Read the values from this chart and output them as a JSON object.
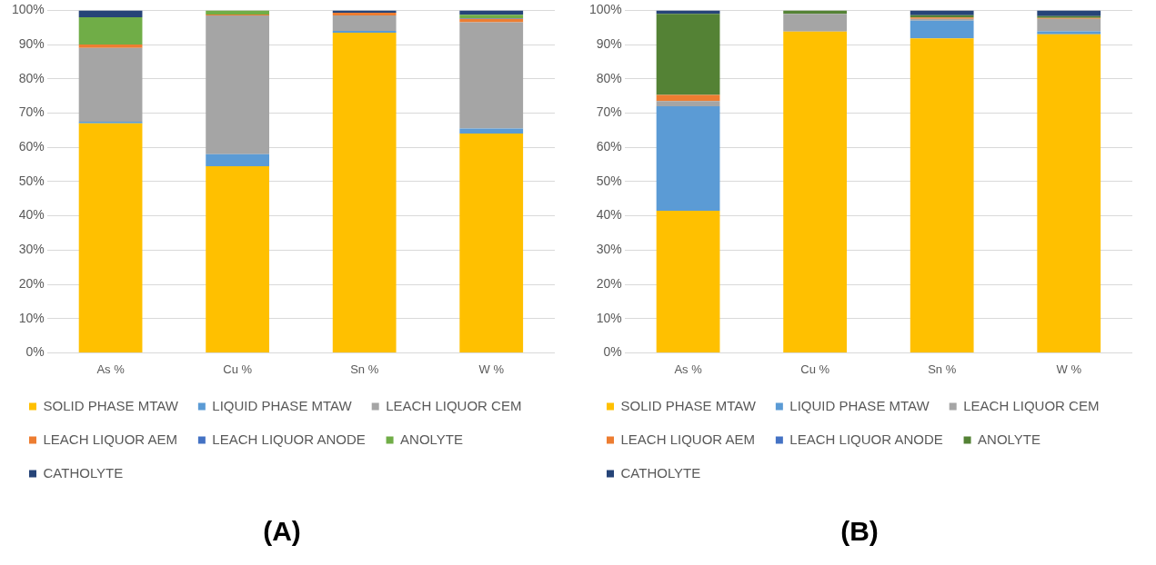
{
  "chart_data": [
    {
      "type": "bar",
      "title": "(A)",
      "stacked": true,
      "categories": [
        "As %",
        "Cu %",
        "Sn %",
        "W %"
      ],
      "ylim": [
        0,
        100
      ],
      "yticks": [
        {
          "value": 0,
          "label": "0%"
        },
        {
          "value": 10,
          "label": "10%"
        },
        {
          "value": 20,
          "label": "20%"
        },
        {
          "value": 30,
          "label": "30%"
        },
        {
          "value": 40,
          "label": "40%"
        },
        {
          "value": 50,
          "label": "50%"
        },
        {
          "value": 60,
          "label": "60%"
        },
        {
          "value": 70,
          "label": "70%"
        },
        {
          "value": 80,
          "label": "80%"
        },
        {
          "value": 90,
          "label": "90%"
        },
        {
          "value": 100,
          "label": "100%"
        }
      ],
      "grid": "y",
      "legend": "bottom",
      "series": [
        {
          "name": "SOLID PHASE MTAW",
          "color": "#ffc000",
          "values": [
            67,
            54.5,
            93.5,
            64
          ]
        },
        {
          "name": "LIQUID PHASE MTAW",
          "color": "#5b9bd5",
          "values": [
            0.5,
            3.5,
            0.5,
            1.5
          ]
        },
        {
          "name": "LEACH LIQUOR CEM",
          "color": "#a5a5a5",
          "values": [
            21.5,
            40.5,
            4.5,
            31
          ]
        },
        {
          "name": "LEACH LIQUOR AEM",
          "color": "#ed7d31",
          "values": [
            1,
            0.3,
            0.8,
            1
          ]
        },
        {
          "name": "LEACH LIQUOR ANODE",
          "color": "#4472c4",
          "values": [
            0,
            0,
            0,
            0.2
          ]
        },
        {
          "name": "ANOLYTE",
          "color": "#70ad47",
          "values": [
            8,
            1.2,
            0,
            1
          ]
        },
        {
          "name": "CATHOLYTE",
          "color": "#264478",
          "values": [
            2,
            0,
            0.7,
            1.3
          ]
        }
      ]
    },
    {
      "type": "bar",
      "title": "(B)",
      "stacked": true,
      "categories": [
        "As %",
        "Cu %",
        "Sn %",
        "W %"
      ],
      "ylim": [
        0,
        100
      ],
      "yticks": [
        {
          "value": 0,
          "label": "0%"
        },
        {
          "value": 10,
          "label": "10%"
        },
        {
          "value": 20,
          "label": "20%"
        },
        {
          "value": 30,
          "label": "30%"
        },
        {
          "value": 40,
          "label": "40%"
        },
        {
          "value": 50,
          "label": "50%"
        },
        {
          "value": 60,
          "label": "60%"
        },
        {
          "value": 70,
          "label": "70%"
        },
        {
          "value": 80,
          "label": "80%"
        },
        {
          "value": 90,
          "label": "90%"
        },
        {
          "value": 100,
          "label": "100%"
        }
      ],
      "grid": "y",
      "legend": "bottom",
      "series": [
        {
          "name": "SOLID PHASE MTAW",
          "color": "#ffc000",
          "values": [
            41.5,
            93.8,
            91.8,
            93
          ]
        },
        {
          "name": "LIQUID PHASE MTAW",
          "color": "#5b9bd5",
          "values": [
            30.5,
            0,
            5.2,
            0.9
          ]
        },
        {
          "name": "LEACH LIQUOR CEM",
          "color": "#a5a5a5",
          "values": [
            1.5,
            5.2,
            0.5,
            3.6
          ]
        },
        {
          "name": "LEACH LIQUOR AEM",
          "color": "#ed7d31",
          "values": [
            1.8,
            0,
            0.4,
            0.3
          ]
        },
        {
          "name": "LEACH LIQUOR ANODE",
          "color": "#4472c4",
          "values": [
            0,
            0,
            0,
            0
          ]
        },
        {
          "name": "ANOLYTE",
          "color": "#548235",
          "values": [
            23.7,
            1,
            0.7,
            0.5
          ]
        },
        {
          "name": "CATHOLYTE",
          "color": "#264478",
          "values": [
            1,
            0,
            1.4,
            1.7
          ]
        }
      ]
    }
  ]
}
